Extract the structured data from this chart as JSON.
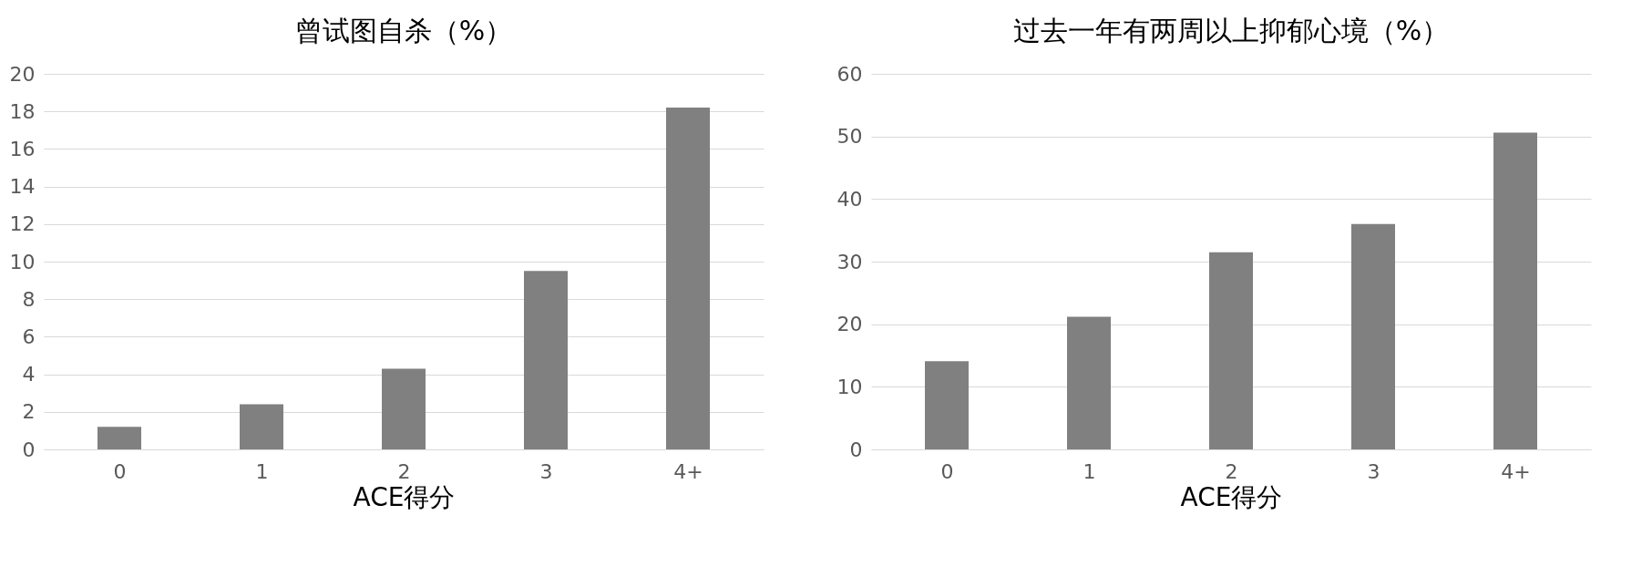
{
  "chart_data": [
    {
      "type": "bar",
      "title": "曾试图自杀（%）",
      "xlabel": "ACE得分",
      "categories": [
        "0",
        "1",
        "2",
        "3",
        "4+"
      ],
      "values": [
        1.2,
        2.4,
        4.3,
        9.5,
        18.2
      ],
      "color": "#808080",
      "ylim": [
        0,
        20
      ],
      "yticks": [
        0,
        2,
        4,
        6,
        8,
        10,
        12,
        14,
        16,
        18,
        20
      ],
      "grid": "y"
    },
    {
      "type": "bar",
      "title": "过去一年有两周以上抑郁心境（%）",
      "xlabel": "ACE得分",
      "categories": [
        "0",
        "1",
        "2",
        "3",
        "4+"
      ],
      "values": [
        14.1,
        21.2,
        31.5,
        36.0,
        50.6
      ],
      "color": "#808080",
      "ylim": [
        0,
        60
      ],
      "yticks": [
        0,
        10,
        20,
        30,
        40,
        50,
        60
      ],
      "grid": "y"
    }
  ]
}
